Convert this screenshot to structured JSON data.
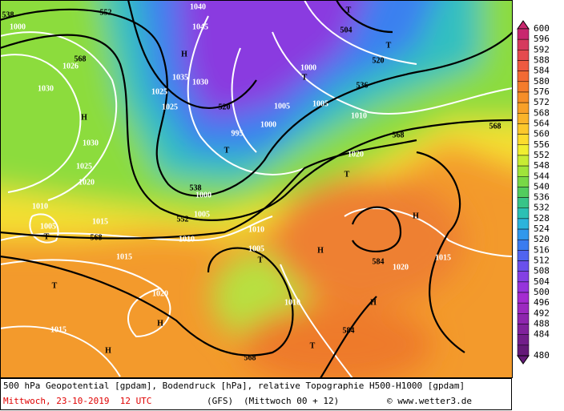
{
  "map": {
    "labels": [
      "538",
      "1000",
      "552",
      "1040",
      "1045",
      "T",
      "504",
      "T",
      "568",
      "1026",
      "H",
      "1035",
      "1030",
      "1030",
      "1025",
      "1025",
      "520",
      "T",
      "1000",
      "520",
      "536",
      "1005",
      "1005",
      "1010",
      "H",
      "1000",
      "995",
      "T",
      "568",
      "568",
      "1030",
      "1025",
      "1020",
      "T",
      "1020",
      "538",
      "1000",
      "1010",
      "552",
      "1005",
      "H",
      "1015",
      "1005",
      "T",
      "568",
      "1010",
      "1010",
      "1005",
      "H",
      "584",
      "1015",
      "T",
      "1015",
      "1020",
      "T",
      "1020",
      "1010",
      "H",
      "H",
      "1015",
      "584",
      "T",
      "H",
      "568"
    ]
  },
  "legend": {
    "levels": [
      {
        "value": 600,
        "color": "#c8286e"
      },
      {
        "value": 596,
        "color": "#d63a5e"
      },
      {
        "value": 592,
        "color": "#e44a4e"
      },
      {
        "value": 588,
        "color": "#ee5a40"
      },
      {
        "value": 584,
        "color": "#f26a34"
      },
      {
        "value": 580,
        "color": "#f47c2c"
      },
      {
        "value": 576,
        "color": "#f68e28"
      },
      {
        "value": 572,
        "color": "#f8a028"
      },
      {
        "value": 568,
        "color": "#fab42a"
      },
      {
        "value": 564,
        "color": "#fcc82c"
      },
      {
        "value": 560,
        "color": "#fcdc2e"
      },
      {
        "value": 556,
        "color": "#f0ee30"
      },
      {
        "value": 552,
        "color": "#c8ec34"
      },
      {
        "value": 548,
        "color": "#a0e43a"
      },
      {
        "value": 544,
        "color": "#78d846"
      },
      {
        "value": 540,
        "color": "#52cc5e"
      },
      {
        "value": 536,
        "color": "#38c488"
      },
      {
        "value": 532,
        "color": "#2cc0b4"
      },
      {
        "value": 528,
        "color": "#2cb4dc"
      },
      {
        "value": 524,
        "color": "#3098ec"
      },
      {
        "value": 520,
        "color": "#3a7cf0"
      },
      {
        "value": 516,
        "color": "#5064f0"
      },
      {
        "value": 512,
        "color": "#6a50ec"
      },
      {
        "value": 508,
        "color": "#8440e4"
      },
      {
        "value": 504,
        "color": "#9634dc"
      },
      {
        "value": 500,
        "color": "#a42cd0"
      },
      {
        "value": 496,
        "color": "#9c2ac0"
      },
      {
        "value": 492,
        "color": "#8e26ae"
      },
      {
        "value": 488,
        "color": "#80229c"
      },
      {
        "value": 484,
        "color": "#721e8a"
      },
      {
        "value": 480,
        "color": "#641a78"
      }
    ]
  },
  "footer": {
    "description": "500 hPa Geopotential [gpdam], Bodendruck [hPa], relative Topographie H500-H1000 [gpdam]",
    "date": "Mittwoch, 23-10-2019  12 UTC",
    "model": "(GFS)",
    "run": "(Mittwoch 00 + 12)",
    "copyright": "© www.wetter3.de"
  }
}
